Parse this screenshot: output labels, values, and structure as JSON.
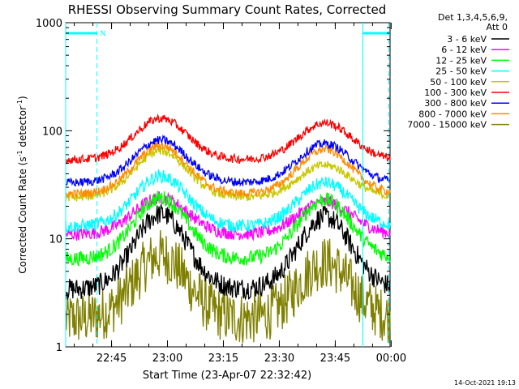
{
  "chart_data": {
    "type": "line",
    "title": "RHESSI Observing Summary Count Rates, Corrected",
    "xlabel": "Start Time (23-Apr-07 22:32:42)",
    "ylabel_main": "Corrected Count Rate (s",
    "ylabel_sup1": "-1",
    "ylabel_mid": " detector",
    "ylabel_sup2": "-1",
    "ylabel_end": ")",
    "yscale": "log",
    "ylim": [
      1,
      1000
    ],
    "xlim_minutes": [
      0,
      87
    ],
    "yticks": [
      {
        "value": 1,
        "label": "1"
      },
      {
        "value": 10,
        "label": "10"
      },
      {
        "value": 100,
        "label": "100"
      },
      {
        "value": 1000,
        "label": "1000"
      }
    ],
    "xticks": [
      {
        "minute": 12.3,
        "label": "22:45"
      },
      {
        "minute": 27.3,
        "label": "23:00"
      },
      {
        "minute": 42.3,
        "label": "23:15"
      },
      {
        "minute": 57.3,
        "label": "23:30"
      },
      {
        "minute": 72.3,
        "label": "23:45"
      },
      {
        "minute": 87.3,
        "label": "00:00"
      }
    ],
    "legend_header": [
      "Det 1,3,4,5,6,9,",
      "Att 0"
    ],
    "series": [
      {
        "name": "3 - 6 keV",
        "color": "#000000",
        "base": 3.4,
        "peak1": 17,
        "peak2": 16,
        "noise": 0.1,
        "floor_time": 0
      },
      {
        "name": "6 - 12 keV",
        "color": "#ff00ff",
        "base": 11,
        "peak1": 24,
        "peak2": 22,
        "noise": 0.06
      },
      {
        "name": "12 - 25 keV",
        "color": "#00ff00",
        "base": 6.5,
        "peak1": 24,
        "peak2": 23,
        "noise": 0.07
      },
      {
        "name": "25 - 50 keV",
        "color": "#00ffff",
        "base": 13,
        "peak1": 38,
        "peak2": 33,
        "noise": 0.06
      },
      {
        "name": "50 - 100 keV",
        "color": "#c8c800",
        "base": 24,
        "peak1": 65,
        "peak2": 48,
        "noise": 0.04
      },
      {
        "name": "100 - 300 keV",
        "color": "#ff0000",
        "base": 54,
        "peak1": 130,
        "peak2": 118,
        "noise": 0.04
      },
      {
        "name": "300 - 800 keV",
        "color": "#0000ff",
        "base": 33,
        "peak1": 82,
        "peak2": 76,
        "noise": 0.04
      },
      {
        "name": "800 - 7000 keV",
        "color": "#ff8c00",
        "base": 26,
        "peak1": 73,
        "peak2": 67,
        "noise": 0.04
      },
      {
        "name": "7000 - 15000 keV",
        "color": "#808000",
        "base": 1.8,
        "peak1": 7,
        "peak2": 6,
        "noise": 0.25
      }
    ],
    "peak_centers_minutes": [
      25.5,
      69.5
    ],
    "peak_width_minutes": 10,
    "night_intervals_minutes": [
      [
        0,
        8.4
      ],
      [
        79.7,
        87
      ]
    ],
    "night_marker_label": "N",
    "saa_dashed_lines_minutes": [
      8.4,
      79.7,
      86.6
    ]
  },
  "footer": {
    "timestamp": "14-Oct-2021 19:13"
  }
}
